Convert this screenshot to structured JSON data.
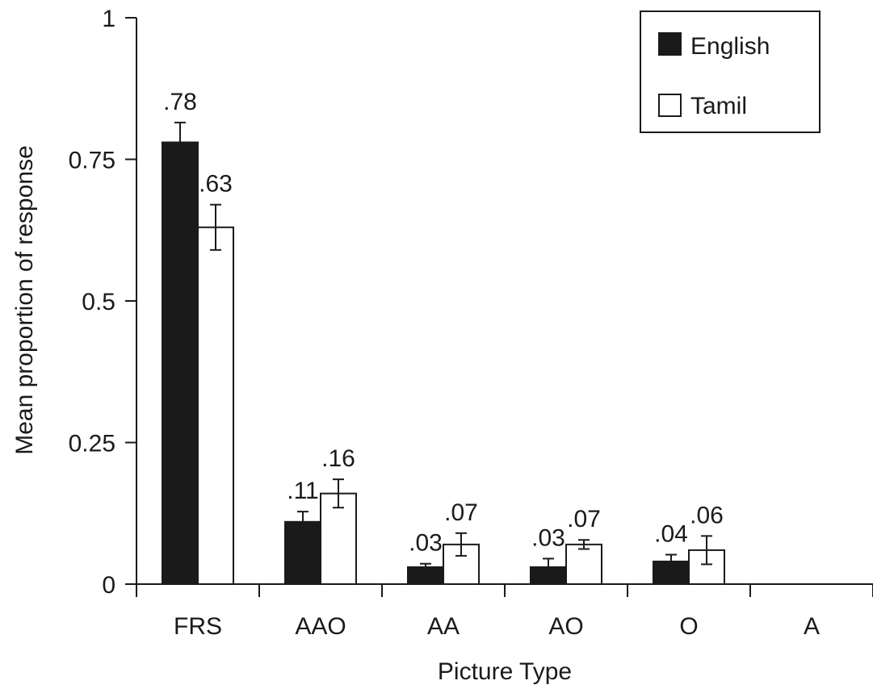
{
  "chart_data": {
    "type": "bar",
    "title": "",
    "xlabel": "Picture Type",
    "ylabel": "Mean proportion of response",
    "ylim": [
      0,
      1
    ],
    "yticks": [
      0,
      0.25,
      0.5,
      0.75,
      1
    ],
    "ytick_labels": [
      "0",
      "0.25",
      "0.5",
      "0.75",
      "1"
    ],
    "categories": [
      "FRS",
      "AAO",
      "AA",
      "AO",
      "O",
      "A"
    ],
    "series": [
      {
        "name": "English",
        "color": "#1a1a1a",
        "values": [
          0.78,
          0.11,
          0.03,
          0.03,
          0.04,
          null
        ],
        "labels": [
          ".78",
          ".11",
          ".03",
          ".03",
          ".04",
          null
        ],
        "error": [
          0.035,
          0.018,
          0.006,
          0.015,
          0.012,
          null
        ]
      },
      {
        "name": "Tamil",
        "color": "#ffffff",
        "values": [
          0.63,
          0.16,
          0.07,
          0.07,
          0.06,
          null
        ],
        "labels": [
          ".63",
          ".16",
          ".07",
          ".07",
          ".06",
          null
        ],
        "error": [
          0.04,
          0.025,
          0.02,
          0.008,
          0.025,
          null
        ]
      }
    ],
    "legend": {
      "position": "top-right",
      "entries": [
        "English",
        "Tamil"
      ]
    },
    "error_bars": true,
    "grid": false
  }
}
